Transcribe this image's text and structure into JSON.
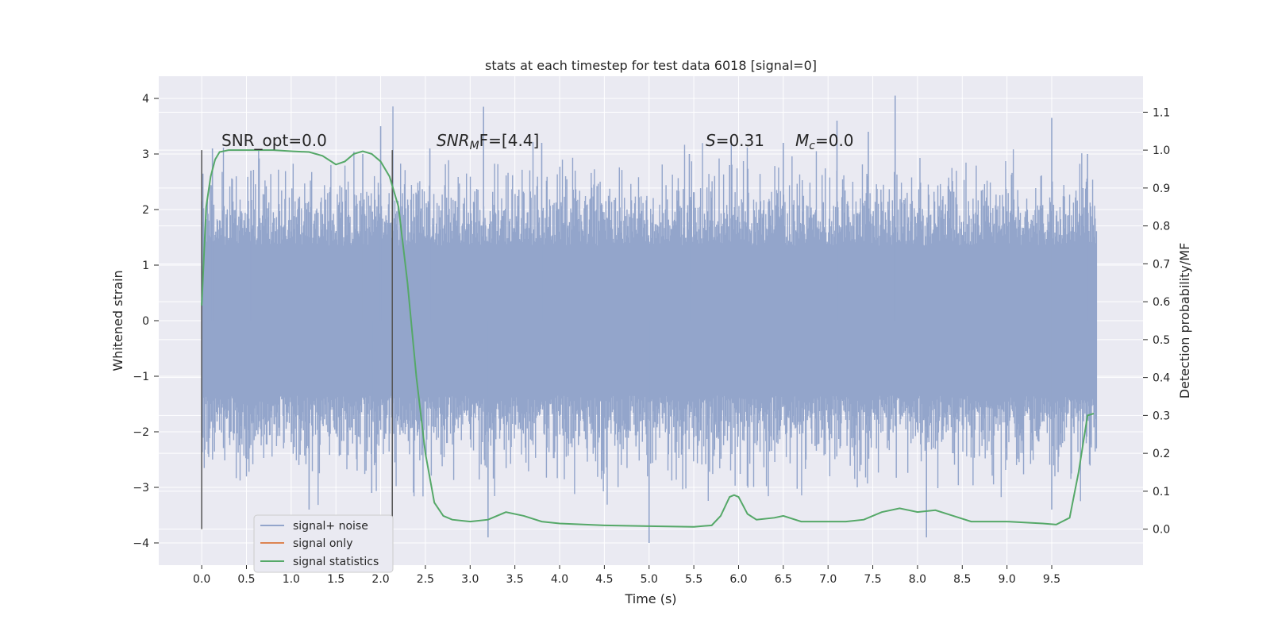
{
  "chart_data": {
    "type": "line",
    "title": "stats at each timestep for test data 6018 [signal=0]",
    "xlabel": "Time (s)",
    "ylabel": "Whitened strain",
    "y2label": "Detection probability/MF",
    "xlim": [
      -0.48,
      10.52
    ],
    "ylim": [
      -4.4,
      4.4
    ],
    "y2lim": [
      -0.095,
      1.195
    ],
    "x_ticks": [
      "0.0",
      "0.5",
      "1.0",
      "1.5",
      "2.0",
      "2.5",
      "3.0",
      "3.5",
      "4.0",
      "4.5",
      "5.0",
      "5.5",
      "6.0",
      "6.5",
      "7.0",
      "7.5",
      "8.0",
      "8.5",
      "9.0",
      "9.5"
    ],
    "y_ticks": [
      "4",
      "3",
      "2",
      "1",
      "0",
      "−1",
      "−2",
      "−3",
      "−4"
    ],
    "y2_ticks": [
      "1.1",
      "1.0",
      "0.9",
      "0.8",
      "0.7",
      "0.6",
      "0.5",
      "0.4",
      "0.3",
      "0.2",
      "0.1",
      "0.0"
    ],
    "grid": true,
    "legend_placement": "lower-left",
    "series": [
      {
        "name": "signal+ noise",
        "color": "#93a5cb",
        "axis": "left",
        "x_range": [
          0.0,
          10.0
        ],
        "typical_range": [
          -1.3,
          1.3
        ],
        "peaks": [
          {
            "x": 0.12,
            "y": 3.1
          },
          {
            "x": 0.55,
            "y": 2.7
          },
          {
            "x": 1.2,
            "y": -3.4
          },
          {
            "x": 1.8,
            "y": 3.0
          },
          {
            "x": 1.9,
            "y": -3.1
          },
          {
            "x": 2.0,
            "y": 3.5
          },
          {
            "x": 2.55,
            "y": 3.1
          },
          {
            "x": 3.15,
            "y": 3.85
          },
          {
            "x": 3.2,
            "y": -3.9
          },
          {
            "x": 3.8,
            "y": 3.2
          },
          {
            "x": 5.0,
            "y": -4.0
          },
          {
            "x": 5.45,
            "y": 3.0
          },
          {
            "x": 5.9,
            "y": 2.8
          },
          {
            "x": 6.5,
            "y": 3.2
          },
          {
            "x": 7.1,
            "y": 3.6
          },
          {
            "x": 7.45,
            "y": 3.4
          },
          {
            "x": 7.75,
            "y": 4.05
          },
          {
            "x": 8.1,
            "y": -3.9
          },
          {
            "x": 9.5,
            "y": 3.65
          },
          {
            "x": 9.5,
            "y": -3.4
          },
          {
            "x": 9.9,
            "y": 3.0
          }
        ]
      },
      {
        "name": "signal only",
        "color": "#dd8452",
        "axis": "left",
        "x": [],
        "y": []
      },
      {
        "name": "signal statistics",
        "color": "#55a868",
        "axis": "right",
        "x": [
          0.0,
          0.05,
          0.1,
          0.15,
          0.2,
          0.3,
          0.5,
          0.8,
          1.0,
          1.2,
          1.35,
          1.5,
          1.6,
          1.7,
          1.8,
          1.9,
          2.0,
          2.1,
          2.2,
          2.3,
          2.4,
          2.5,
          2.6,
          2.7,
          2.8,
          3.0,
          3.2,
          3.4,
          3.6,
          3.8,
          4.0,
          4.5,
          5.0,
          5.5,
          5.7,
          5.8,
          5.9,
          5.95,
          6.0,
          6.1,
          6.2,
          6.4,
          6.5,
          6.7,
          7.0,
          7.2,
          7.4,
          7.6,
          7.8,
          8.0,
          8.2,
          8.4,
          8.6,
          9.0,
          9.4,
          9.55,
          9.7,
          9.8,
          9.9,
          9.97
        ],
        "y": [
          0.59,
          0.85,
          0.93,
          0.975,
          0.995,
          1.0,
          1.0,
          1.0,
          0.997,
          0.995,
          0.985,
          0.962,
          0.97,
          0.99,
          0.997,
          0.99,
          0.97,
          0.93,
          0.85,
          0.65,
          0.4,
          0.2,
          0.07,
          0.035,
          0.025,
          0.02,
          0.025,
          0.045,
          0.035,
          0.02,
          0.015,
          0.01,
          0.008,
          0.006,
          0.01,
          0.035,
          0.085,
          0.09,
          0.085,
          0.04,
          0.025,
          0.03,
          0.035,
          0.02,
          0.02,
          0.02,
          0.025,
          0.045,
          0.055,
          0.045,
          0.05,
          0.035,
          0.02,
          0.02,
          0.015,
          0.012,
          0.03,
          0.15,
          0.3,
          0.305
        ]
      }
    ],
    "vertical_lines": [
      {
        "x": 0.0,
        "y2_range": [
          0.0,
          1.0
        ]
      },
      {
        "x": 2.13,
        "y2_range": [
          0.0,
          1.0
        ]
      }
    ],
    "annotations": {
      "snr_opt": "SNR_opt=0.0",
      "snr_mf_main": "SNR",
      "snr_mf_sub": "M",
      "snr_mf_rest": "F=[4.4]",
      "s_main": "S",
      "s_rest": "=0.31",
      "mc_main": "M",
      "mc_sub": "c",
      "mc_rest": "=0.0"
    }
  }
}
